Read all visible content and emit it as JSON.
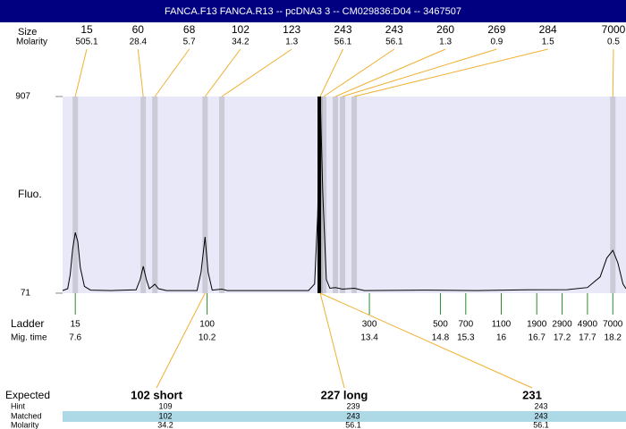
{
  "chart_data": {
    "type": "line",
    "title": "FANCA.F13 FANCA.R13 -- pcDNA3 3 -- CM029836:D04 -- 3467507",
    "ylabel": "Fluo.",
    "ylim": [
      71,
      907
    ],
    "yticks": [
      71,
      907
    ],
    "xlim": [
      7.35,
      18.46
    ],
    "x": [
      7.35,
      7.45,
      7.5,
      7.55,
      7.6,
      7.65,
      7.7,
      7.78,
      7.9,
      8.3,
      8.8,
      8.88,
      8.94,
      9.0,
      9.06,
      9.12,
      9.17,
      9.24,
      9.4,
      10.0,
      10.08,
      10.16,
      10.22,
      10.3,
      10.49,
      10.6,
      12.2,
      12.32,
      12.38,
      12.43,
      12.48,
      12.55,
      12.62,
      12.73,
      12.87,
      13.1,
      13.3,
      14.5,
      15.5,
      16.5,
      17.3,
      17.7,
      17.95,
      18.08,
      18.2,
      18.3,
      18.4,
      18.46
    ],
    "series": [
      {
        "color": "#000000",
        "values": [
          82,
          90,
          150,
          260,
          329,
          290,
          180,
          100,
          84,
          82,
          85,
          130,
          185,
          130,
          90,
          100,
          109,
          90,
          82,
          82,
          160,
          310,
          160,
          84,
          88,
          82,
          82,
          110,
          400,
          907,
          500,
          130,
          92,
          95,
          88,
          92,
          82,
          84,
          82,
          85,
          86,
          95,
          140,
          220,
          253,
          200,
          110,
          90
        ]
      }
    ],
    "peaks": {
      "size_label": "Size",
      "molarity_label": "Molarity",
      "sizes": [
        15,
        60,
        68,
        102,
        123,
        243,
        243,
        260,
        269,
        284,
        7000
      ],
      "molarities": [
        505.1,
        28.4,
        5.7,
        34.2,
        1.3,
        56.1,
        56.1,
        1.3,
        0.9,
        1.5,
        0.5
      ],
      "times": [
        7.6,
        8.94,
        9.17,
        10.16,
        10.49,
        12.43,
        12.5,
        12.73,
        12.87,
        13.1,
        18.2
      ]
    },
    "ladder": {
      "label": "Ladder",
      "time_label": "Mig. time",
      "sizes": [
        15,
        100,
        300,
        500,
        700,
        1100,
        1900,
        2900,
        4900,
        7000
      ],
      "times": [
        7.6,
        10.2,
        13.4,
        14.8,
        15.3,
        16,
        16.7,
        17.2,
        17.7,
        18.2
      ]
    }
  },
  "expected": {
    "labels": [
      "Expected",
      "Hint",
      "Matched",
      "Molarity"
    ],
    "columns": [
      {
        "expected": "102 short",
        "hint": 109,
        "matched": 102,
        "molarity": 34.2
      },
      {
        "expected": "227 long",
        "hint": 239,
        "matched": 243,
        "molarity": 56.1
      },
      {
        "expected": "231",
        "hint": 243,
        "matched": 243,
        "molarity": 56.1
      }
    ]
  }
}
